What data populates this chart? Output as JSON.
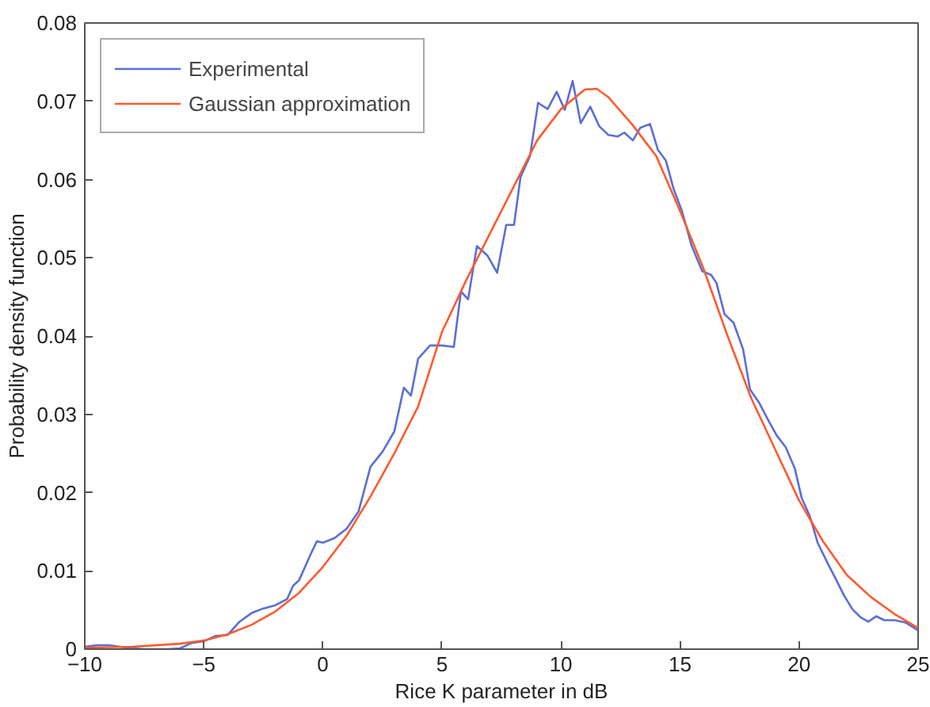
{
  "chart_data": {
    "type": "line",
    "xlabel": "Rice K parameter in dB",
    "ylabel": "Probability density function",
    "xlim": [
      -10,
      25
    ],
    "ylim": [
      0,
      0.08
    ],
    "xticks": [
      {
        "value": -10,
        "label": "−10"
      },
      {
        "value": -5,
        "label": "−5"
      },
      0,
      5,
      10,
      15,
      20,
      25
    ],
    "yticks": [
      0,
      0.01,
      0.02,
      0.03,
      0.04,
      0.05,
      0.06,
      0.07,
      0.08
    ],
    "grid": false,
    "legend": "top left",
    "marker": "none",
    "line_style": "solid",
    "series": [
      {
        "name": "Experimental",
        "color": "#5b6fd3",
        "x": [
          -10,
          -9.5,
          -9,
          -8.5,
          -8,
          -7.5,
          -7,
          -6.5,
          -6,
          -5.5,
          -5,
          -4.5,
          -4,
          -3.5,
          -3,
          -2.5,
          -2,
          -1.5,
          -1.25,
          -1,
          -0.5,
          -0.25,
          0,
          0.5,
          1,
          1.5,
          2,
          2.5,
          3,
          3.4,
          3.7,
          4,
          4.5,
          5,
          5.5,
          5.8,
          6.1,
          6.47,
          6.91,
          7.32,
          7.7,
          8.03,
          8.3,
          8.7,
          9.04,
          9.44,
          9.82,
          10.16,
          10.49,
          10.83,
          11.23,
          11.61,
          11.99,
          12.39,
          12.66,
          13.02,
          13.33,
          13.74,
          14.07,
          14.41,
          14.74,
          15.08,
          15.48,
          15.93,
          16.31,
          16.53,
          16.87,
          17.25,
          17.65,
          17.94,
          18.32,
          18.66,
          19.06,
          19.44,
          19.82,
          20.11,
          20.45,
          20.78,
          21.23,
          21.57,
          21.9,
          22.24,
          22.57,
          22.91,
          23.24,
          23.58,
          24.03,
          24.47,
          25
        ],
        "values": [
          0.0003,
          0.0005,
          0.0005,
          0.0003,
          0.0001,
          0,
          0,
          0,
          0.0001,
          0.0008,
          0.001,
          0.0017,
          0.0018,
          0.0035,
          0.0046,
          0.0052,
          0.0056,
          0.0064,
          0.0081,
          0.0088,
          0.0122,
          0.0138,
          0.0136,
          0.0142,
          0.0154,
          0.0176,
          0.0233,
          0.0252,
          0.0278,
          0.0334,
          0.0324,
          0.0371,
          0.0388,
          0.0388,
          0.0386,
          0.0457,
          0.0447,
          0.0515,
          0.0503,
          0.0481,
          0.0542,
          0.0542,
          0.0603,
          0.063,
          0.0698,
          0.069,
          0.0712,
          0.0689,
          0.0726,
          0.0672,
          0.0693,
          0.0668,
          0.0657,
          0.0655,
          0.066,
          0.065,
          0.0666,
          0.0671,
          0.0638,
          0.0624,
          0.0587,
          0.056,
          0.0516,
          0.0483,
          0.0478,
          0.0468,
          0.0428,
          0.0417,
          0.0383,
          0.0332,
          0.0315,
          0.0295,
          0.0273,
          0.0258,
          0.0231,
          0.0193,
          0.017,
          0.0136,
          0.0108,
          0.0088,
          0.0068,
          0.0051,
          0.0041,
          0.0035,
          0.0042,
          0.0037,
          0.0037,
          0.0034,
          0.0024
        ]
      },
      {
        "name": "Gaussian approximation",
        "color": "#ff5a2e",
        "x": [
          -10,
          -8,
          -6,
          -5,
          -4,
          -3,
          -2,
          -1,
          0,
          1,
          2,
          3,
          4,
          5,
          6,
          7,
          8,
          9,
          10,
          11,
          11.5,
          12,
          13,
          14,
          15,
          16,
          17,
          18,
          19,
          20,
          21,
          22,
          23,
          24,
          25
        ],
        "values": [
          0.0002,
          0.0003,
          0.0007,
          0.0011,
          0.0019,
          0.0031,
          0.0048,
          0.0072,
          0.0105,
          0.0145,
          0.0195,
          0.025,
          0.031,
          0.0405,
          0.047,
          0.053,
          0.059,
          0.065,
          0.069,
          0.0715,
          0.0716,
          0.0705,
          0.067,
          0.063,
          0.056,
          0.0485,
          0.04,
          0.032,
          0.0255,
          0.019,
          0.0138,
          0.0095,
          0.0067,
          0.0045,
          0.0027
        ]
      }
    ]
  }
}
